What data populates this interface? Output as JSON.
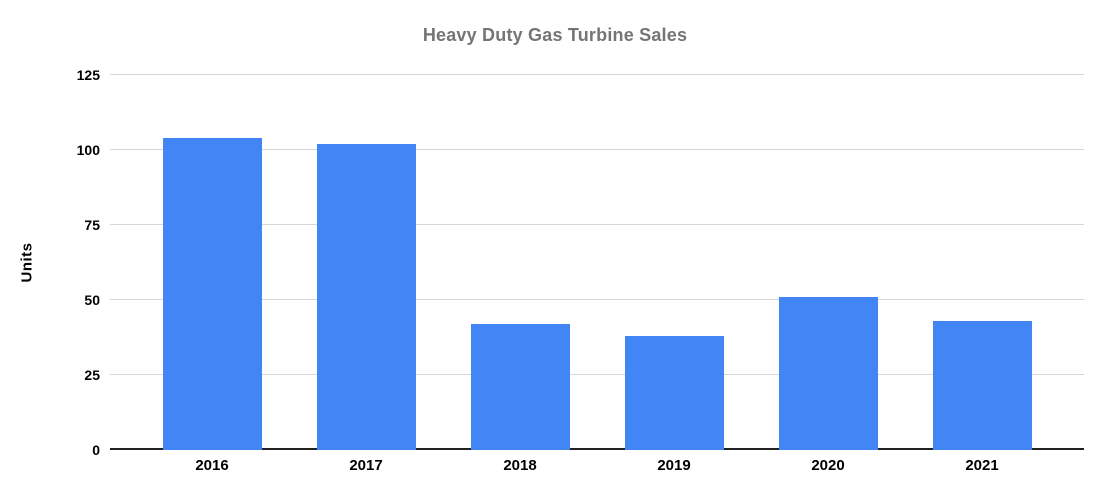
{
  "chart_data": {
    "type": "bar",
    "title": "Heavy Duty Gas Turbine Sales",
    "categories": [
      "2016",
      "2017",
      "2018",
      "2019",
      "2020",
      "2021"
    ],
    "values": [
      104,
      102,
      42,
      38,
      51,
      43
    ],
    "xlabel": "",
    "ylabel": "Units",
    "ylim": [
      0,
      125
    ],
    "yticks": [
      0,
      25,
      50,
      75,
      100,
      125
    ],
    "grid": true,
    "legend": "none"
  },
  "colors": {
    "bar": "#4285f4",
    "title": "#757575",
    "gridline": "#d6d6d6",
    "axis_line": "#212121",
    "tick_label": "#000000",
    "background": "#ffffff"
  }
}
